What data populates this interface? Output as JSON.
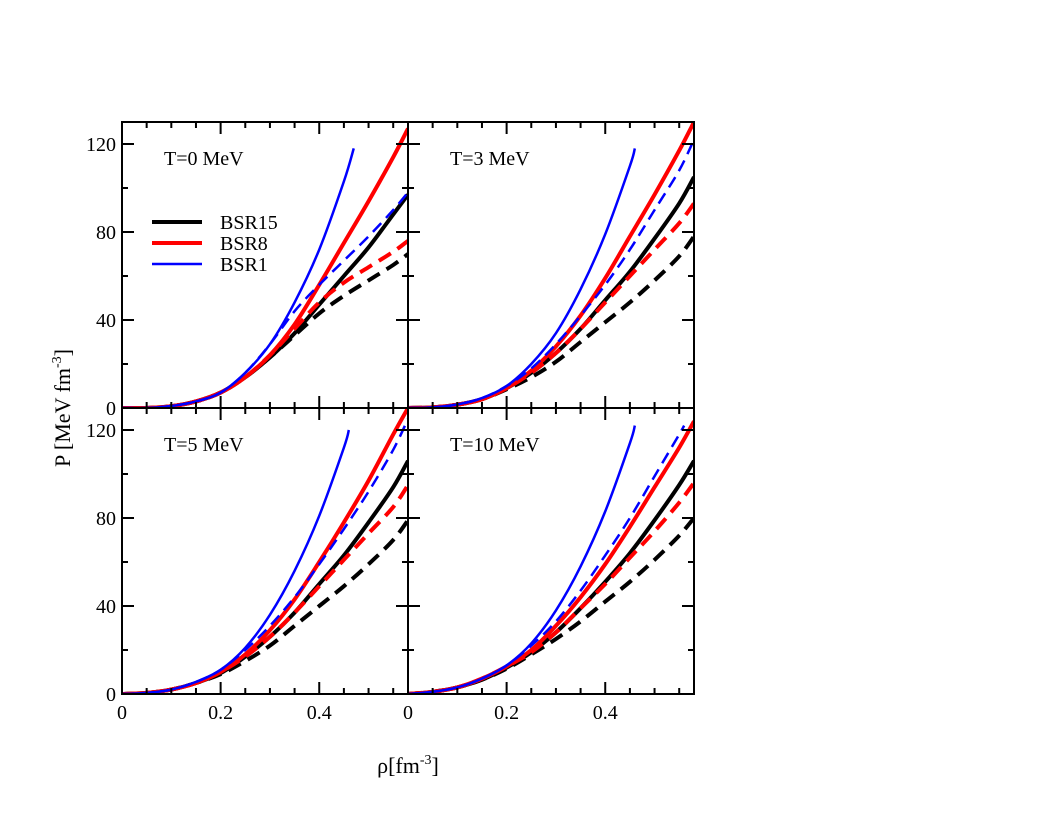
{
  "chart_data": {
    "type": "line",
    "y_axis_label": {
      "main": "P [MeV fm",
      "sup": "-3",
      "tail": "]"
    },
    "x_axis_label": {
      "main": "ρ[fm",
      "sup": "-3",
      "tail": "]"
    },
    "xlim": [
      0,
      0.58
    ],
    "ylim": [
      0,
      130
    ],
    "x_ticks": [
      0,
      0.2,
      0.4
    ],
    "x_tick_labels": [
      "0",
      "0.2",
      "0.4"
    ],
    "y_ticks": [
      0,
      40,
      80,
      120
    ],
    "y_tick_labels": [
      "0",
      "40",
      "80",
      "120"
    ],
    "legend": [
      {
        "name": "BSR15",
        "color": "#000000",
        "width": 4
      },
      {
        "name": "BSR8",
        "color": "#ff0000",
        "width": 4
      },
      {
        "name": "BSR1",
        "color": "#0000ff",
        "width": 2.5
      }
    ],
    "line_styles": {
      "solid": "solid",
      "dashed": "dashed"
    },
    "panels": [
      {
        "title": "T=0 MeV",
        "series": [
          {
            "model": "BSR15",
            "style": "solid",
            "x": [
              0,
              0.05,
              0.1,
              0.15,
              0.2,
              0.25,
              0.3,
              0.35,
              0.4,
              0.45,
              0.5,
              0.55,
              0.58
            ],
            "y": [
              0,
              0,
              0.8,
              3,
              7,
              14,
              23,
              34,
              47,
              60,
              73,
              88,
              97
            ]
          },
          {
            "model": "BSR15",
            "style": "dashed",
            "x": [
              0,
              0.05,
              0.1,
              0.15,
              0.2,
              0.25,
              0.3,
              0.35,
              0.4,
              0.45,
              0.5,
              0.55,
              0.58
            ],
            "y": [
              0,
              0,
              0.8,
              3,
              7,
              14,
              23,
              33,
              43,
              51,
              58,
              65,
              70
            ]
          },
          {
            "model": "BSR8",
            "style": "solid",
            "x": [
              0,
              0.05,
              0.1,
              0.15,
              0.2,
              0.25,
              0.3,
              0.35,
              0.4,
              0.45,
              0.5,
              0.55,
              0.58
            ],
            "y": [
              0,
              0,
              0.8,
              3,
              7,
              14,
              24,
              38,
              56,
              75,
              94,
              114,
              127
            ]
          },
          {
            "model": "BSR8",
            "style": "dashed",
            "x": [
              0,
              0.05,
              0.1,
              0.15,
              0.2,
              0.25,
              0.3,
              0.35,
              0.4,
              0.45,
              0.5,
              0.55,
              0.58
            ],
            "y": [
              0,
              0,
              0.8,
              3,
              7,
              14,
              24,
              36,
              48,
              57,
              64,
              71,
              76
            ]
          },
          {
            "model": "BSR1",
            "style": "solid",
            "x": [
              0,
              0.05,
              0.1,
              0.15,
              0.2,
              0.25,
              0.3,
              0.35,
              0.4,
              0.45,
              0.47
            ],
            "y": [
              0,
              0,
              0.9,
              3,
              7,
              16,
              29,
              48,
              72,
              103,
              118
            ]
          },
          {
            "model": "BSR1",
            "style": "dashed",
            "x": [
              0,
              0.05,
              0.1,
              0.15,
              0.2,
              0.25,
              0.3,
              0.35,
              0.4,
              0.45,
              0.5,
              0.55,
              0.58
            ],
            "y": [
              0,
              0,
              0.9,
              3,
              7,
              16,
              29,
              44,
              56,
              67,
              78,
              90,
              98
            ]
          }
        ]
      },
      {
        "title": "T=3 MeV",
        "series": [
          {
            "model": "BSR15",
            "style": "solid",
            "x": [
              0,
              0.05,
              0.1,
              0.15,
              0.2,
              0.25,
              0.3,
              0.35,
              0.4,
              0.45,
              0.5,
              0.55,
              0.58
            ],
            "y": [
              0,
              0.3,
              1.5,
              4,
              9,
              16,
              25,
              36,
              49,
              62,
              77,
              93,
              105
            ]
          },
          {
            "model": "BSR15",
            "style": "dashed",
            "x": [
              0,
              0.05,
              0.1,
              0.15,
              0.2,
              0.25,
              0.3,
              0.35,
              0.4,
              0.45,
              0.5,
              0.55,
              0.58
            ],
            "y": [
              0,
              0.3,
              1.5,
              4,
              8.5,
              14,
              21,
              30,
              39,
              48,
              58,
              69,
              78
            ]
          },
          {
            "model": "BSR8",
            "style": "solid",
            "x": [
              0,
              0.05,
              0.1,
              0.15,
              0.2,
              0.25,
              0.3,
              0.35,
              0.4,
              0.45,
              0.5,
              0.55,
              0.58
            ],
            "y": [
              0,
              0.3,
              1.5,
              4,
              9,
              17,
              28,
              42,
              59,
              78,
              97,
              117,
              130
            ]
          },
          {
            "model": "BSR8",
            "style": "dashed",
            "x": [
              0,
              0.05,
              0.1,
              0.15,
              0.2,
              0.25,
              0.3,
              0.35,
              0.4,
              0.45,
              0.5,
              0.55,
              0.58
            ],
            "y": [
              0,
              0.3,
              1.5,
              4,
              9,
              16,
              25,
              36,
              48,
              60,
              72,
              84,
              93
            ]
          },
          {
            "model": "BSR1",
            "style": "solid",
            "x": [
              0,
              0.05,
              0.1,
              0.15,
              0.2,
              0.25,
              0.3,
              0.35,
              0.4,
              0.45,
              0.46
            ],
            "y": [
              0,
              0.3,
              1.6,
              4.5,
              10,
              20,
              34,
              54,
              79,
              110,
              118
            ]
          },
          {
            "model": "BSR1",
            "style": "dashed",
            "x": [
              0,
              0.05,
              0.1,
              0.15,
              0.2,
              0.25,
              0.3,
              0.35,
              0.4,
              0.45,
              0.5,
              0.55,
              0.58
            ],
            "y": [
              0,
              0.3,
              1.6,
              4.5,
              10,
              18,
              29,
              42,
              56,
              72,
              90,
              108,
              122
            ]
          }
        ]
      },
      {
        "title": "T=5 MeV",
        "series": [
          {
            "model": "BSR15",
            "style": "solid",
            "x": [
              0,
              0.05,
              0.1,
              0.15,
              0.2,
              0.25,
              0.3,
              0.35,
              0.4,
              0.45,
              0.5,
              0.55,
              0.58
            ],
            "y": [
              0,
              0.5,
              2,
              5,
              9.5,
              17,
              26,
              37,
              50,
              63,
              78,
              94,
              106
            ]
          },
          {
            "model": "BSR15",
            "style": "dashed",
            "x": [
              0,
              0.05,
              0.1,
              0.15,
              0.2,
              0.25,
              0.3,
              0.35,
              0.4,
              0.45,
              0.5,
              0.55,
              0.58
            ],
            "y": [
              0,
              0.5,
              2,
              5,
              9,
              15,
              22,
              31,
              40,
              49,
              59,
              70,
              79
            ]
          },
          {
            "model": "BSR8",
            "style": "solid",
            "x": [
              0,
              0.05,
              0.1,
              0.15,
              0.2,
              0.25,
              0.3,
              0.35,
              0.4,
              0.45,
              0.5,
              0.55,
              0.58
            ],
            "y": [
              0,
              0.5,
              2,
              5,
              10,
              18,
              29,
              43,
              60,
              78,
              97,
              118,
              130
            ]
          },
          {
            "model": "BSR8",
            "style": "dashed",
            "x": [
              0,
              0.05,
              0.1,
              0.15,
              0.2,
              0.25,
              0.3,
              0.35,
              0.4,
              0.45,
              0.5,
              0.55,
              0.58
            ],
            "y": [
              0,
              0.5,
              2,
              5,
              10,
              17,
              26,
              37,
              49,
              61,
              73,
              85,
              95
            ]
          },
          {
            "model": "BSR1",
            "style": "solid",
            "x": [
              0,
              0.05,
              0.1,
              0.15,
              0.2,
              0.25,
              0.3,
              0.35,
              0.4,
              0.45,
              0.46
            ],
            "y": [
              0,
              0.5,
              2,
              5.5,
              11,
              21,
              36,
              56,
              81,
              112,
              120
            ]
          },
          {
            "model": "BSR1",
            "style": "dashed",
            "x": [
              0,
              0.05,
              0.1,
              0.15,
              0.2,
              0.25,
              0.3,
              0.35,
              0.4,
              0.45,
              0.5,
              0.55,
              0.58
            ],
            "y": [
              0,
              0.5,
              2,
              5.5,
              11,
              20,
              31,
              44,
              59,
              75,
              92,
              111,
              125
            ]
          }
        ]
      },
      {
        "title": "T=10 MeV",
        "series": [
          {
            "model": "BSR15",
            "style": "solid",
            "x": [
              0,
              0.05,
              0.1,
              0.15,
              0.2,
              0.25,
              0.3,
              0.35,
              0.4,
              0.45,
              0.5,
              0.55,
              0.58
            ],
            "y": [
              0,
              1,
              3,
              6.5,
              12,
              19,
              28,
              39,
              51,
              64,
              79,
              95,
              106
            ]
          },
          {
            "model": "BSR15",
            "style": "dashed",
            "x": [
              0,
              0.05,
              0.1,
              0.15,
              0.2,
              0.25,
              0.3,
              0.35,
              0.4,
              0.45,
              0.5,
              0.55,
              0.58
            ],
            "y": [
              0,
              1,
              3,
              6.5,
              11.5,
              18,
              25,
              33,
              42,
              51,
              61,
              72,
              80
            ]
          },
          {
            "model": "BSR8",
            "style": "solid",
            "x": [
              0,
              0.05,
              0.1,
              0.15,
              0.2,
              0.25,
              0.3,
              0.35,
              0.4,
              0.45,
              0.5,
              0.55,
              0.58
            ],
            "y": [
              0,
              1,
              3,
              7,
              12.5,
              20,
              31,
              44,
              59,
              76,
              94,
              112,
              124
            ]
          },
          {
            "model": "BSR8",
            "style": "dashed",
            "x": [
              0,
              0.05,
              0.1,
              0.15,
              0.2,
              0.25,
              0.3,
              0.35,
              0.4,
              0.45,
              0.5,
              0.55,
              0.58
            ],
            "y": [
              0,
              1,
              3,
              7,
              12.5,
              19,
              28,
              39,
              50,
              62,
              74,
              87,
              96
            ]
          },
          {
            "model": "BSR1",
            "style": "solid",
            "x": [
              0,
              0.05,
              0.1,
              0.15,
              0.2,
              0.25,
              0.3,
              0.35,
              0.4,
              0.45,
              0.46
            ],
            "y": [
              0,
              1,
              3,
              7,
              13,
              23,
              38,
              58,
              83,
              114,
              122
            ]
          },
          {
            "model": "BSR1",
            "style": "dashed",
            "x": [
              0,
              0.05,
              0.1,
              0.15,
              0.2,
              0.25,
              0.3,
              0.35,
              0.4,
              0.45,
              0.5,
              0.55,
              0.56
            ],
            "y": [
              0,
              1,
              3,
              7,
              13,
              22,
              33,
              47,
              63,
              80,
              99,
              118,
              122
            ]
          }
        ]
      }
    ]
  }
}
